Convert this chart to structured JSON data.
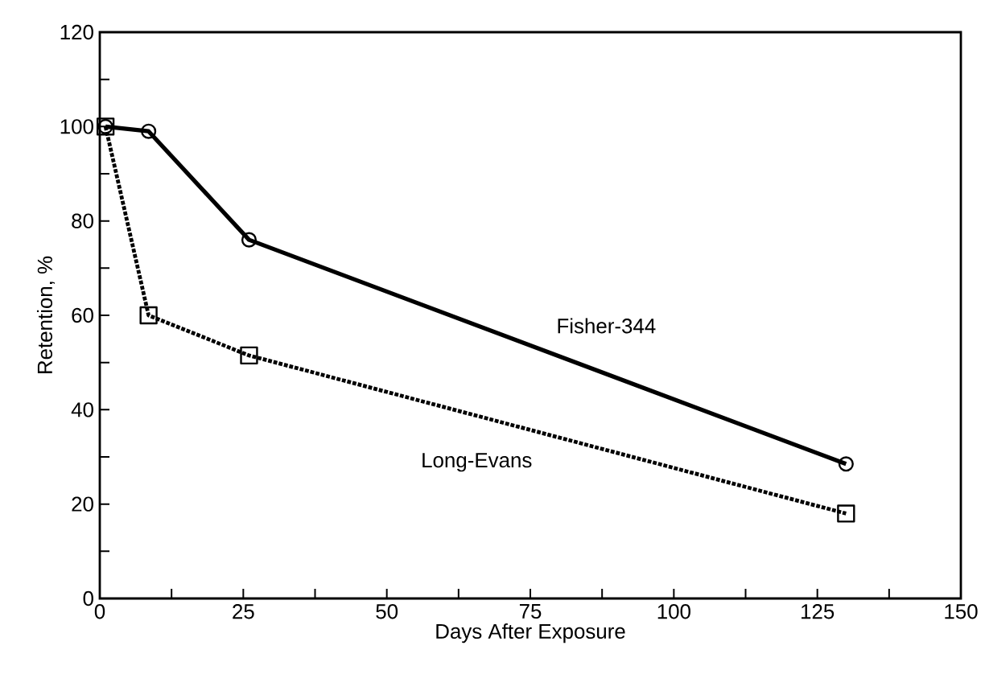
{
  "chart_data": {
    "type": "line",
    "xlabel": "Days After Exposure",
    "ylabel": "Retention, %",
    "xlim": [
      0,
      150
    ],
    "ylim": [
      0,
      120
    ],
    "xticks": [
      0,
      {
        "value": 12.5,
        "label": null
      },
      25,
      {
        "value": 37.5,
        "label": null
      },
      50,
      {
        "value": 62.5,
        "label": null
      },
      75,
      {
        "value": 87.5,
        "label": null
      },
      100,
      {
        "value": 112.5,
        "label": null
      },
      125,
      {
        "value": 137.5,
        "label": null
      },
      150
    ],
    "yticks": [
      0,
      {
        "value": 10,
        "label": null
      },
      20,
      {
        "value": 30,
        "label": null
      },
      40,
      {
        "value": 50,
        "label": null
      },
      60,
      {
        "value": 70,
        "label": null
      },
      80,
      {
        "value": 90,
        "label": null
      },
      100,
      {
        "value": 110,
        "label": null
      },
      120
    ],
    "grid": false,
    "legend": false,
    "series": [
      {
        "name": "Fisher-344",
        "color": "#000000",
        "marker": "circle",
        "line_style": "solid",
        "x": [
          1,
          8.5,
          26,
          130
        ],
        "values": [
          100,
          99,
          76,
          28.5
        ]
      },
      {
        "name": "Long-Evans",
        "color": "#000000",
        "marker": "square",
        "line_style": "dotted",
        "x": [
          1,
          8.5,
          26,
          130
        ],
        "values": [
          100,
          60,
          51.5,
          18
        ]
      }
    ]
  }
}
